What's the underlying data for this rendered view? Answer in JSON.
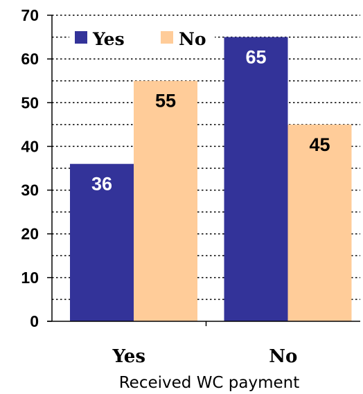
{
  "chart_data": {
    "type": "bar",
    "categories": [
      "Yes",
      "No"
    ],
    "series": [
      {
        "name": "Yes",
        "values": [
          36,
          65
        ],
        "color": "#333399"
      },
      {
        "name": "No",
        "values": [
          55,
          45
        ],
        "color": "#ffcc99"
      }
    ],
    "data_labels": [
      [
        "36",
        "65"
      ],
      [
        "55",
        "45"
      ]
    ],
    "label_colors": [
      "#ffffff",
      "#000000"
    ],
    "title": "",
    "xlabel": "Received WC payment",
    "ylabel": "",
    "ylim": [
      0,
      70
    ],
    "yticks": [
      0,
      10,
      20,
      30,
      40,
      50,
      60,
      70
    ],
    "grid": "dotted horizontal",
    "legend_placement": "top-left"
  }
}
